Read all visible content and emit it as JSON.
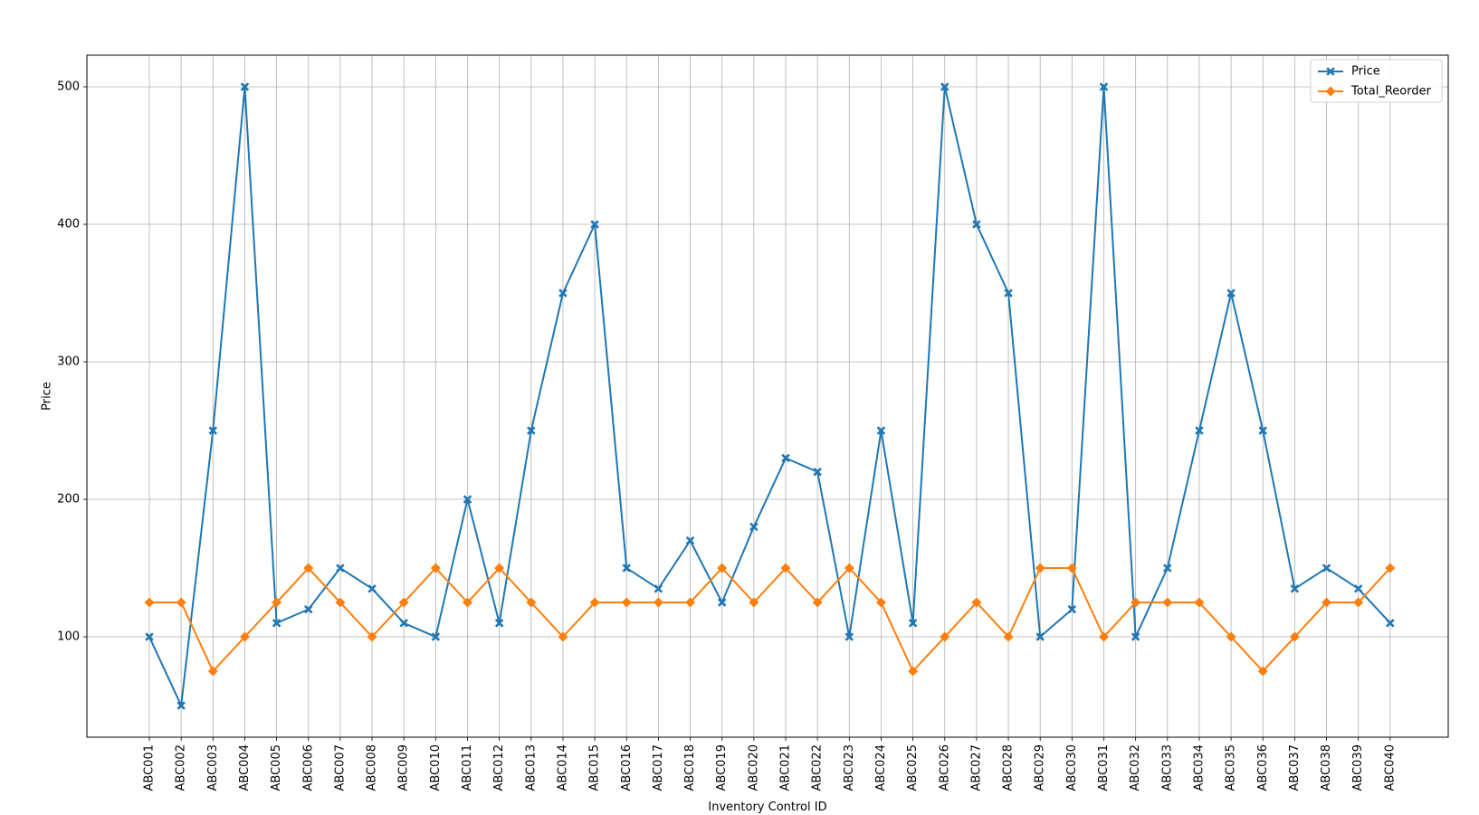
{
  "chart_data": {
    "type": "line",
    "title": "",
    "xlabel": "Inventory Control ID",
    "ylabel": "Price",
    "ylim": [
      27,
      523
    ],
    "yticks": [
      100,
      200,
      300,
      400,
      500
    ],
    "grid": true,
    "legend_position": "top-right",
    "categories": [
      "ABC001",
      "ABC002",
      "ABC003",
      "ABC004",
      "ABC005",
      "ABC006",
      "ABC007",
      "ABC008",
      "ABC009",
      "ABC010",
      "ABC011",
      "ABC012",
      "ABC013",
      "ABC014",
      "ABC015",
      "ABC016",
      "ABC017",
      "ABC018",
      "ABC019",
      "ABC020",
      "ABC021",
      "ABC022",
      "ABC023",
      "ABC024",
      "ABC025",
      "ABC026",
      "ABC027",
      "ABC028",
      "ABC029",
      "ABC030",
      "ABC031",
      "ABC032",
      "ABC033",
      "ABC034",
      "ABC035",
      "ABC036",
      "ABC037",
      "ABC038",
      "ABC039",
      "ABC040"
    ],
    "series": [
      {
        "name": "Price",
        "color": "#1f77b4",
        "marker": "X",
        "values": [
          100,
          50,
          250,
          500,
          110,
          120,
          150,
          135,
          110,
          100,
          200,
          110,
          250,
          350,
          400,
          150,
          135,
          170,
          125,
          180,
          230,
          220,
          100,
          250,
          110,
          500,
          400,
          350,
          100,
          120,
          500,
          100,
          150,
          250,
          350,
          250,
          135,
          150,
          135,
          110
        ]
      },
      {
        "name": "Total_Reorder",
        "color": "#ff7f0e",
        "marker": "D",
        "values": [
          125,
          125,
          75,
          100,
          125,
          150,
          125,
          100,
          125,
          150,
          125,
          150,
          125,
          100,
          125,
          125,
          125,
          125,
          150,
          125,
          150,
          125,
          150,
          125,
          75,
          100,
          125,
          100,
          150,
          150,
          100,
          125,
          125,
          125,
          100,
          75,
          100,
          125,
          125,
          150
        ]
      }
    ]
  }
}
